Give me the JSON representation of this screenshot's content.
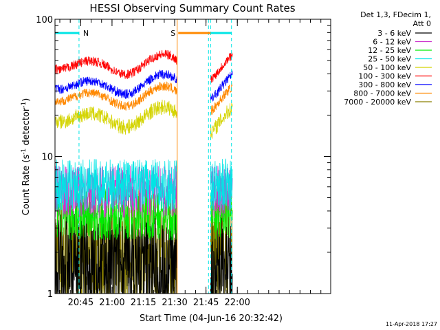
{
  "chart_data": {
    "type": "line",
    "title": "HESSI Observing Summary Count Rates",
    "xlabel": "Start Time (04-Jun-16 20:32:42)",
    "ylabel_main": "Count Rate (s",
    "ylabel_sup1": "-1",
    "ylabel_mid": " detector",
    "ylabel_sup2": "-1",
    "ylabel_end": ")",
    "y_scale": "log",
    "ylim": [
      1,
      100
    ],
    "xlim_minutes_after_start": [
      0,
      132
    ],
    "x_tick_labels": [
      {
        "label": "20:45",
        "minutes": 12.3
      },
      {
        "label": "21:00",
        "minutes": 27.3
      },
      {
        "label": "21:15",
        "minutes": 42.3
      },
      {
        "label": "21:30",
        "minutes": 57.3
      },
      {
        "label": "21:45",
        "minutes": 72.3
      },
      {
        "label": "22:00",
        "minutes": 87.3
      }
    ],
    "y_tick_labels": [
      {
        "label": "1",
        "value": 1
      },
      {
        "label": "10",
        "value": 10
      },
      {
        "label": "100",
        "value": 100
      }
    ],
    "legend_header": [
      "Det 1,3, FDecim 1,",
      "Att 0"
    ],
    "legend_position": "right",
    "series": [
      {
        "name": "3 - 6 keV",
        "color": "#000000",
        "level": 1.6,
        "noise": 0.4
      },
      {
        "name": "6 - 12 keV",
        "color": "#cc33cc",
        "level": 5.5,
        "noise": 0.2
      },
      {
        "name": "12 - 25 keV",
        "color": "#00ee00",
        "level": 3.8,
        "noise": 0.2
      },
      {
        "name": "25 - 50 keV",
        "color": "#00e5e5",
        "level": 6.2,
        "noise": 0.2
      },
      {
        "name": "50 - 100 keV",
        "color": "#d4d400",
        "level": 19,
        "noise": 0.08
      },
      {
        "name": "100 - 300 keV",
        "color": "#ff0000",
        "level": 46,
        "noise": 0.05
      },
      {
        "name": "300 - 800 keV",
        "color": "#0000ff",
        "level": 33,
        "noise": 0.05
      },
      {
        "name": "800 - 7000 keV",
        "color": "#ff8800",
        "level": 27,
        "noise": 0.05
      },
      {
        "name": "7000 - 20000 keV",
        "color": "#8b8000",
        "level": 2.0,
        "noise": 0.5
      }
    ],
    "data_segments_minutes": [
      [
        0,
        58.5
      ],
      [
        74.5,
        85
      ]
    ],
    "annotations": [
      {
        "text": "N",
        "color": "#00e5e5",
        "x_minutes": [
          0,
          11.5
        ]
      },
      {
        "text": "S",
        "color": "#ff8800",
        "x_minutes": [
          59,
          74.5
        ]
      },
      {
        "text": "",
        "color": "#00e5e5",
        "x_minutes": [
          74.5,
          84.5
        ]
      }
    ],
    "markers": [
      {
        "minutes": 11.5,
        "color": "#00e5e5",
        "style": "dashed"
      },
      {
        "minutes": 58.5,
        "color": "#ff8800",
        "style": "solid"
      },
      {
        "minutes": 73.5,
        "color": "#00e5e5",
        "style": "dashed"
      },
      {
        "minutes": 74.5,
        "color": "#00e5e5",
        "style": "dashed"
      },
      {
        "minutes": 84.5,
        "color": "#00e5e5",
        "style": "dashed"
      }
    ]
  },
  "footer": {
    "timestamp": "11-Apr-2018 17:27"
  }
}
